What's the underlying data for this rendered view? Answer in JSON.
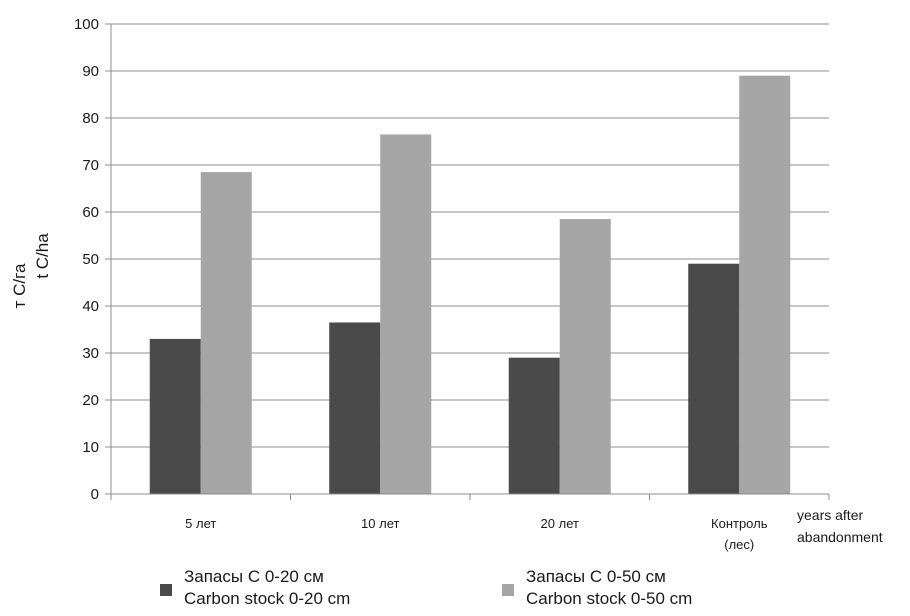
{
  "chart_data": {
    "type": "bar",
    "categories": [
      "5 лет",
      "10 лет",
      "20 лет",
      "Контроль (лес)"
    ],
    "series": [
      {
        "name": "Запасы С 0-20 см / Carbon stock 0-20 cm",
        "values": [
          33,
          36.5,
          29,
          49
        ],
        "color": "#4a4a4a"
      },
      {
        "name": "Запасы С 0-50 см / Carbon stock 0-50 cm",
        "values": [
          68.5,
          76.5,
          58.5,
          89
        ],
        "color": "#a6a6a6"
      }
    ],
    "ylabel_line1": "т С/га",
    "ylabel_line2": "t C/ha",
    "xnote_line1": "years after",
    "xnote_line2": "abandonment",
    "ylim": [
      0,
      100
    ],
    "yticks": [
      0,
      10,
      20,
      30,
      40,
      50,
      60,
      70,
      80,
      90,
      100
    ],
    "grid": true,
    "legend_position": "bottom"
  },
  "legend": [
    {
      "line1": "Запасы С 0-20 см",
      "line2": "Carbon stock 0-20 cm"
    },
    {
      "line1": "Запасы С 0-50 см",
      "line2": "Carbon stock 0-50 cm"
    }
  ]
}
